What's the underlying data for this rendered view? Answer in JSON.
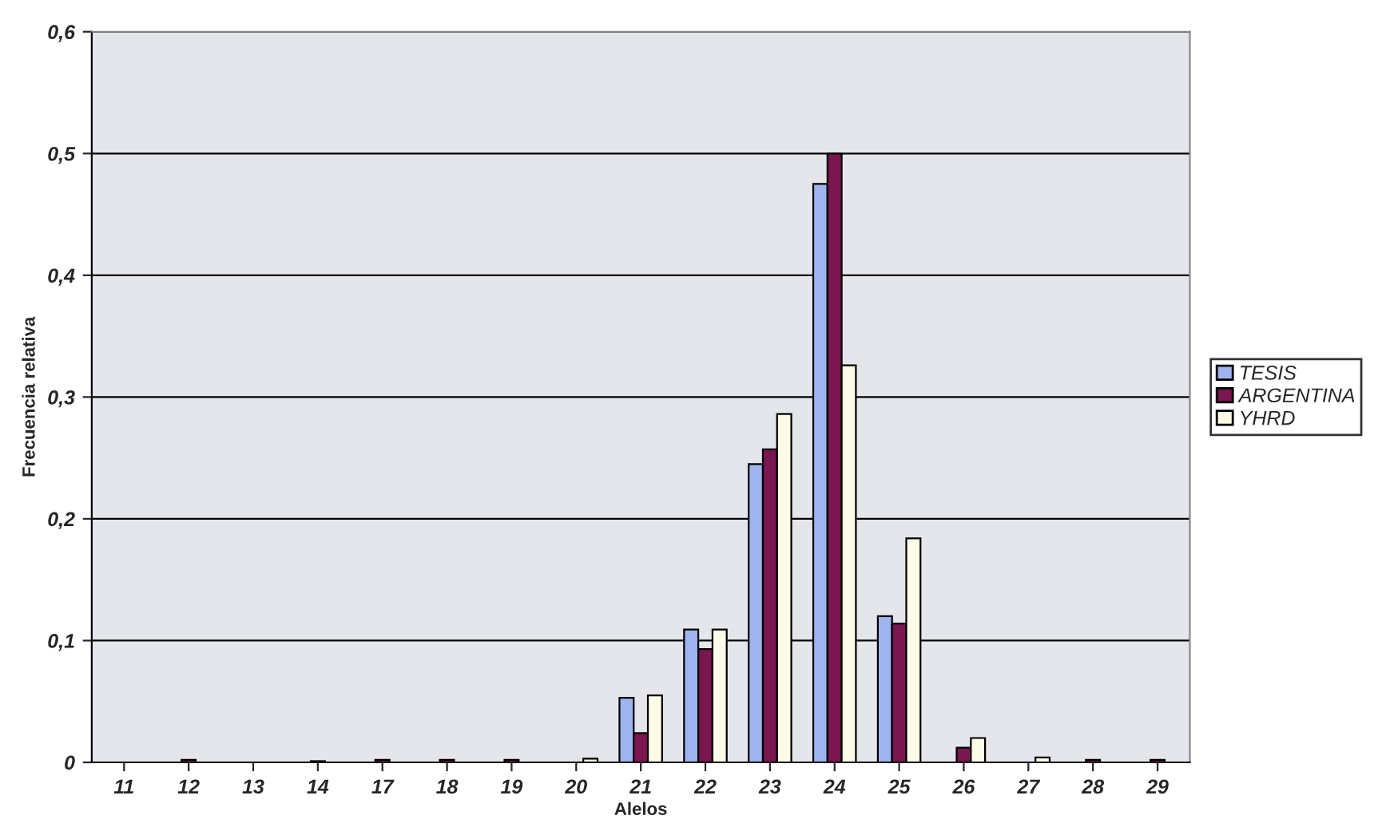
{
  "chart_data": {
    "type": "bar",
    "xlabel": "Alelos",
    "ylabel": "Frecuencia relativa",
    "categories": [
      "11",
      "12",
      "13",
      "14",
      "17",
      "18",
      "19",
      "20",
      "21",
      "22",
      "23",
      "24",
      "25",
      "26",
      "27",
      "28",
      "29"
    ],
    "series": [
      {
        "name": "TESIS",
        "color": "#9fb4ee",
        "values": [
          null,
          null,
          null,
          null,
          null,
          null,
          null,
          null,
          0.053,
          0.109,
          0.245,
          0.475,
          0.12,
          null,
          null,
          null,
          null
        ]
      },
      {
        "name": "ARGENTINA",
        "color": "#7a1650",
        "values": [
          null,
          0.002,
          null,
          0.001,
          0.002,
          0.002,
          0.002,
          null,
          0.024,
          0.093,
          0.257,
          0.5,
          0.114,
          0.012,
          null,
          0.002,
          0.002
        ]
      },
      {
        "name": "YHRD",
        "color": "#fbfbe8",
        "values": [
          null,
          null,
          null,
          null,
          null,
          null,
          null,
          0.003,
          0.055,
          0.109,
          0.286,
          0.326,
          0.184,
          0.02,
          0.004,
          null,
          null
        ]
      }
    ],
    "ylim": [
      0,
      0.6
    ],
    "yticks": [
      {
        "value": 0,
        "label": "0"
      },
      {
        "value": 0.1,
        "label": "0,1"
      },
      {
        "value": 0.2,
        "label": "0,2"
      },
      {
        "value": 0.3,
        "label": "0,3"
      },
      {
        "value": 0.4,
        "label": "0,4"
      },
      {
        "value": 0.5,
        "label": "0,5"
      },
      {
        "value": 0.6,
        "label": "0,6"
      }
    ],
    "grid": "y",
    "legend": "right"
  }
}
